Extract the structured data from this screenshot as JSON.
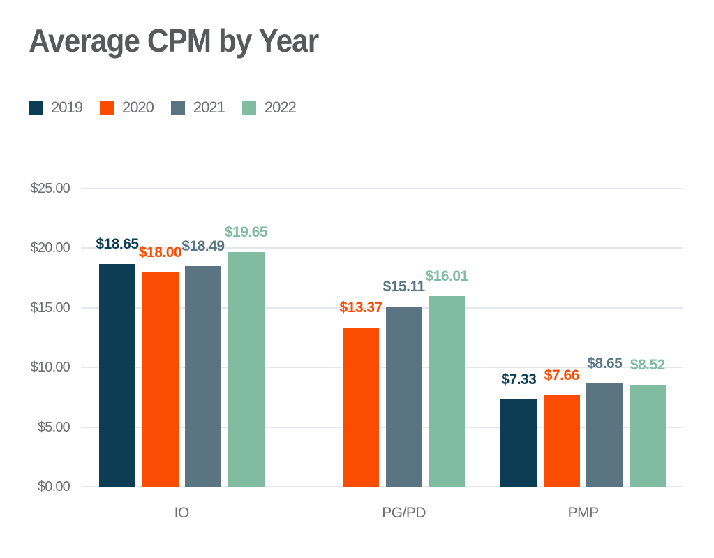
{
  "chart_data": {
    "type": "bar",
    "title": "Average CPM by Year",
    "categories": [
      "IO",
      "PG/PD",
      "PMP"
    ],
    "series": [
      {
        "name": "2019",
        "color": "#0D3C55",
        "values": [
          18.65,
          null,
          7.33
        ],
        "value_labels": [
          "$18.65",
          null,
          "$7.33"
        ]
      },
      {
        "name": "2020",
        "color": "#FB4D02",
        "values": [
          18.0,
          13.37,
          7.66
        ],
        "value_labels": [
          "$18.00",
          "$13.37",
          "$7.66"
        ]
      },
      {
        "name": "2021",
        "color": "#5A7482",
        "values": [
          18.49,
          15.11,
          8.65
        ],
        "value_labels": [
          "$18.49",
          "$15.11",
          "$8.65"
        ]
      },
      {
        "name": "2022",
        "color": "#80BBA2",
        "values": [
          19.65,
          16.01,
          8.52
        ],
        "value_labels": [
          "$19.65",
          "$16.01",
          "$8.52"
        ]
      }
    ],
    "y_axis": {
      "min": 0,
      "max": 25,
      "ticks": [
        {
          "value": 25,
          "label": "$25.00"
        },
        {
          "value": 20,
          "label": "$20.00"
        },
        {
          "value": 15,
          "label": "$15.00"
        },
        {
          "value": 10,
          "label": "$10.00"
        },
        {
          "value": 5,
          "label": "$5.00"
        },
        {
          "value": 0,
          "label": "$0.00"
        }
      ]
    },
    "x_axis": {
      "labels": [
        "IO",
        "PG/PD",
        "PMP"
      ]
    },
    "grid": true,
    "legend": {
      "position": "top-left",
      "items": [
        "2019",
        "2020",
        "2021",
        "2022"
      ]
    },
    "colors": {
      "background": "#FFFFFF",
      "title_text": "#58595B",
      "axis_text": "#6D6E71",
      "gridline": "#E5E8EC"
    }
  }
}
